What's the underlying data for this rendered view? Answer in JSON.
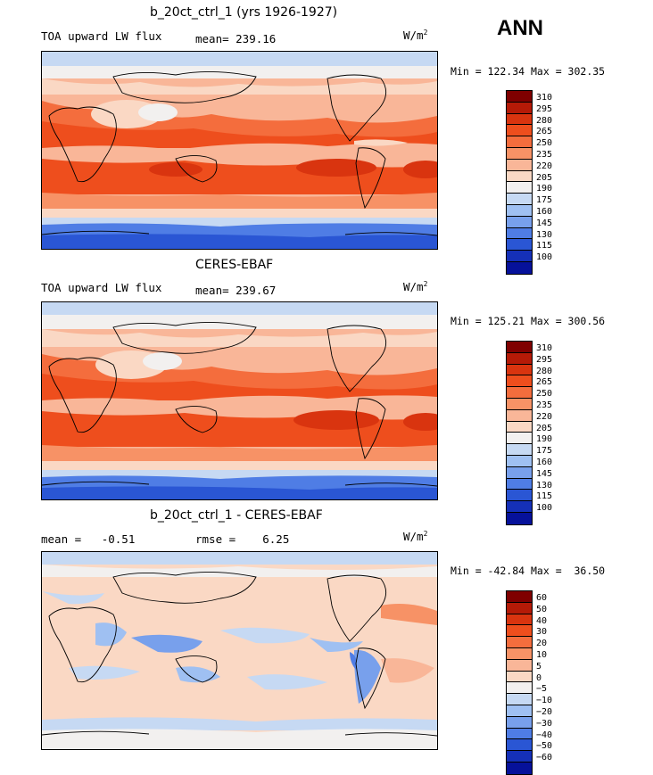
{
  "season": "ANN",
  "units_base": "W/m",
  "units_exp": "2",
  "panels": [
    {
      "title": "b_20ct_ctrl_1 (yrs 1926-1927)",
      "left_text": "TOA upward LW flux",
      "stats_text": "mean= 239.16",
      "minmax": "Min = 122.34 Max = 302.35",
      "levels": [
        "310",
        "295",
        "280",
        "265",
        "250",
        "235",
        "220",
        "205",
        "190",
        "175",
        "160",
        "145",
        "130",
        "115",
        "100"
      ]
    },
    {
      "title": "CERES-EBAF",
      "left_text": "TOA upward LW flux",
      "stats_text": "mean= 239.67",
      "minmax": "Min = 125.21 Max = 300.56",
      "levels": [
        "310",
        "295",
        "280",
        "265",
        "250",
        "235",
        "220",
        "205",
        "190",
        "175",
        "160",
        "145",
        "130",
        "115",
        "100"
      ]
    },
    {
      "title": "b_20ct_ctrl_1 - CERES-EBAF",
      "left_text": "mean =   -0.51",
      "stats_text": "rmse =    6.25",
      "minmax": "Min = -42.84 Max =  36.50",
      "levels": [
        "60",
        "50",
        "40",
        "30",
        "20",
        "10",
        "5",
        "0",
        "−5",
        "−10",
        "−20",
        "−30",
        "−40",
        "−50",
        "−60"
      ]
    }
  ],
  "colors": {
    "absolute_scale": [
      "#7f0000",
      "#b51a07",
      "#d9340f",
      "#ee4e1d",
      "#f46d3d",
      "#f79266",
      "#f9b698",
      "#fad8c4",
      "#f2f0ef",
      "#c6d9f3",
      "#9fc0f2",
      "#78a0ec",
      "#4f7de5",
      "#2a56d4",
      "#1530b8",
      "#06119a"
    ],
    "diff_scale": [
      "#7f0000",
      "#b51a07",
      "#d9340f",
      "#ee4e1d",
      "#f46d3d",
      "#f79266",
      "#f9b698",
      "#fad8c4",
      "#f2f0ef",
      "#c6d9f3",
      "#9fc0f2",
      "#78a0ec",
      "#4f7de5",
      "#2a56d4",
      "#1530b8",
      "#06119a"
    ]
  },
  "chart_data": [
    {
      "type": "heatmap",
      "title": "b_20ct_ctrl_1 (yrs 1926-1927)",
      "variable": "TOA upward LW flux",
      "units": "W/m^2",
      "mean": 239.16,
      "min": 122.34,
      "max": 302.35,
      "contour_levels": [
        100,
        115,
        130,
        145,
        160,
        175,
        190,
        205,
        220,
        235,
        250,
        265,
        280,
        295,
        310
      ]
    },
    {
      "type": "heatmap",
      "title": "CERES-EBAF",
      "variable": "TOA upward LW flux",
      "units": "W/m^2",
      "mean": 239.67,
      "min": 125.21,
      "max": 300.56,
      "contour_levels": [
        100,
        115,
        130,
        145,
        160,
        175,
        190,
        205,
        220,
        235,
        250,
        265,
        280,
        295,
        310
      ]
    },
    {
      "type": "heatmap",
      "title": "b_20ct_ctrl_1 - CERES-EBAF",
      "units": "W/m^2",
      "mean": -0.51,
      "rmse": 6.25,
      "min": -42.84,
      "max": 36.5,
      "contour_levels": [
        -60,
        -50,
        -40,
        -30,
        -20,
        -10,
        -5,
        0,
        5,
        10,
        20,
        30,
        40,
        50,
        60
      ]
    }
  ]
}
